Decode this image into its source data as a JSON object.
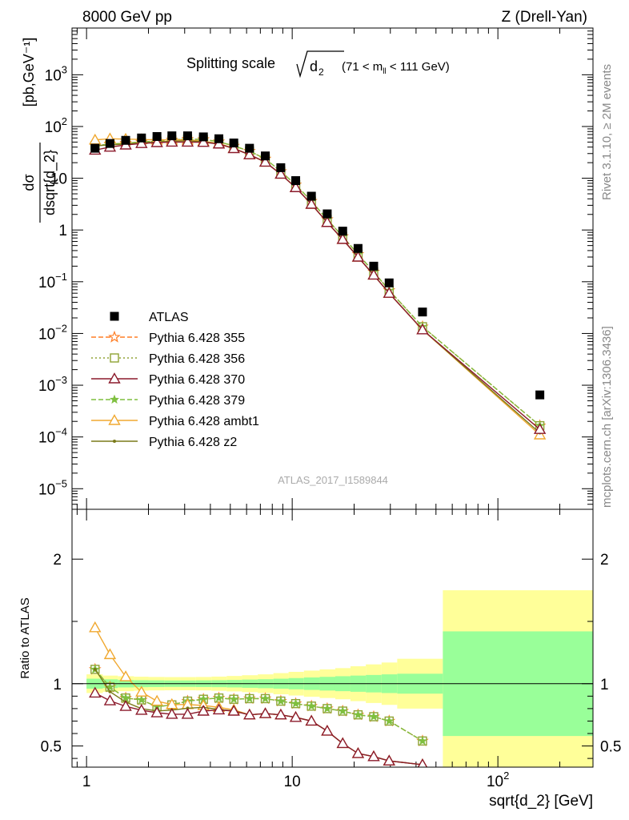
{
  "header": {
    "left": "8000 GeV pp",
    "right": "Z (Drell-Yan)"
  },
  "side_labels": {
    "rivet": "Rivet 3.1.10, ≥ 2M events",
    "mcplots": "mcplots.cern.ch [arXiv:1306.3436]"
  },
  "chart_data": [
    {
      "type": "scatter",
      "panel": "main",
      "title": "Splitting scale",
      "title_symbol": "d",
      "title_symbol_sub": "2",
      "subtitle_prefix": "(71 < m",
      "subtitle_sub": "ll",
      "subtitle_suffix": " < 111 GeV)",
      "ylabel_num": "dσ",
      "ylabel_den": "dsqrt{d_2}",
      "ylabel_unit": "[pb,GeV⁻¹]",
      "xscale": "log",
      "yscale": "log",
      "xlim": [
        0.85,
        290
      ],
      "ylim": [
        4e-06,
        8000
      ],
      "y_ticks": [
        {
          "v": 1e-05,
          "b": "10",
          "e": "−5"
        },
        {
          "v": 0.0001,
          "b": "10",
          "e": "−4"
        },
        {
          "v": 0.001,
          "b": "10",
          "e": "−3"
        },
        {
          "v": 0.01,
          "b": "10",
          "e": "−2"
        },
        {
          "v": 0.1,
          "b": "10",
          "e": "−1"
        },
        {
          "v": 1,
          "b": "1",
          "e": ""
        },
        {
          "v": 10,
          "b": "10",
          "e": ""
        },
        {
          "v": 100,
          "b": "10",
          "e": "2"
        },
        {
          "v": 1000,
          "b": "10",
          "e": "3"
        }
      ],
      "watermark": "ATLAS_2017_I1589844",
      "legend_position": "left",
      "series": [
        {
          "name": "ATLAS",
          "color": "#000000",
          "marker": "square",
          "x": [
            1.1,
            1.3,
            1.55,
            1.85,
            2.2,
            2.6,
            3.1,
            3.7,
            4.4,
            5.2,
            6.2,
            7.4,
            8.8,
            10.4,
            12.4,
            14.8,
            17.6,
            20.9,
            24.9,
            29.6,
            43,
            160
          ],
          "y": [
            38,
            47,
            54,
            60,
            64,
            66,
            66,
            63,
            58,
            48,
            38,
            27,
            16,
            9,
            4.5,
            2.05,
            0.95,
            0.44,
            0.2,
            0.095,
            0.026,
            0.00065
          ]
        },
        {
          "name": "Pythia 6.428 355",
          "color": "#ff7f27",
          "marker": "star-open",
          "dash": "6,3",
          "x": [
            1.1,
            1.3,
            1.55,
            1.85,
            2.2,
            2.6,
            3.1,
            3.7,
            4.4,
            5.2,
            6.2,
            7.4,
            8.8,
            10.4,
            12.4,
            14.8,
            17.6,
            20.9,
            24.9,
            29.6,
            43,
            160
          ],
          "y": [
            42.4,
            45.7,
            47.8,
            50,
            52,
            55,
            57,
            56,
            51,
            42,
            33.5,
            23.7,
            13.6,
            7.5,
            3.6,
            1.6,
            0.75,
            0.34,
            0.155,
            0.068,
            0.0135,
            0.000165
          ]
        },
        {
          "name": "Pythia 6.428 356",
          "color": "#8fa234",
          "marker": "square-open",
          "dash": "2,3",
          "x": [
            1.1,
            1.3,
            1.55,
            1.85,
            2.2,
            2.6,
            3.1,
            3.7,
            4.4,
            5.2,
            6.2,
            7.4,
            8.8,
            10.4,
            12.4,
            14.8,
            17.6,
            20.9,
            24.9,
            29.6,
            43,
            160
          ],
          "y": [
            42.4,
            45.7,
            47.8,
            50,
            52,
            55,
            57,
            56,
            51,
            42,
            33.5,
            23.7,
            13.6,
            7.5,
            3.6,
            1.6,
            0.75,
            0.34,
            0.155,
            0.068,
            0.0135,
            0.000165
          ]
        },
        {
          "name": "Pythia 6.428 370",
          "color": "#8b1a2b",
          "marker": "triangle-open",
          "dash": "",
          "x": [
            1.1,
            1.3,
            1.55,
            1.85,
            2.2,
            2.6,
            3.1,
            3.7,
            4.4,
            5.2,
            6.2,
            7.4,
            8.8,
            10.4,
            12.4,
            14.8,
            17.6,
            20.9,
            24.9,
            29.6,
            43,
            160
          ],
          "y": [
            35,
            40,
            44,
            47,
            49,
            50,
            50,
            49.5,
            46,
            37.5,
            28.5,
            20.5,
            12,
            6.6,
            3.15,
            1.4,
            0.66,
            0.3,
            0.135,
            0.06,
            0.0118,
            0.00014
          ]
        },
        {
          "name": "Pythia 6.428 379",
          "color": "#7fbf3f",
          "marker": "star",
          "dash": "6,3",
          "x": [
            1.1,
            1.3,
            1.55,
            1.85,
            2.2,
            2.6,
            3.1,
            3.7,
            4.4,
            5.2,
            6.2,
            7.4,
            8.8,
            10.4,
            12.4,
            14.8,
            17.6,
            20.9,
            24.9,
            29.6,
            43,
            160
          ],
          "y": [
            42.4,
            45.7,
            47.8,
            50,
            52,
            55,
            57,
            56,
            51,
            42,
            33.5,
            23.7,
            13.6,
            7.5,
            3.6,
            1.6,
            0.75,
            0.34,
            0.155,
            0.068,
            0.0135,
            0.000165
          ]
        },
        {
          "name": "Pythia 6.428 ambt1",
          "color": "#f0a830",
          "marker": "triangle-open",
          "dash": "",
          "x": [
            1.1,
            1.3,
            1.55,
            1.85,
            2.2,
            2.6,
            3.1,
            3.7,
            4.4,
            5.2,
            6.2,
            7.4,
            8.8,
            10.4,
            12.4,
            14.8,
            17.6,
            20.9,
            24.9,
            29.6,
            43,
            160
          ],
          "y": [
            55,
            58,
            57,
            56,
            55,
            55,
            55,
            52,
            47,
            38,
            28.5,
            20.5,
            12,
            6.6,
            3.15,
            1.4,
            0.66,
            0.3,
            0.135,
            0.06,
            0.0118,
            0.00011
          ]
        },
        {
          "name": "Pythia 6.428 z2",
          "color": "#7a7a1a",
          "marker": "dot",
          "dash": "",
          "x": [
            1.1,
            1.3,
            1.55,
            1.85,
            2.2,
            2.6,
            3.1,
            3.7,
            4.4,
            5.2,
            6.2,
            7.4,
            8.8,
            10.4,
            12.4,
            14.8,
            17.6,
            20.9,
            24.9,
            29.6,
            43,
            160
          ],
          "y": [
            42.4,
            44,
            46,
            48,
            50,
            52,
            53,
            51,
            46,
            37.5,
            28.5,
            20.5,
            12,
            6.6,
            3.15,
            1.4,
            0.66,
            0.3,
            0.135,
            0.06,
            0.0118,
            0.00012
          ]
        }
      ]
    },
    {
      "type": "line",
      "panel": "ratio",
      "ylabel": "Ratio to ATLAS",
      "xlabel": "sqrt{d_2} [GeV]",
      "xscale": "log",
      "xlim": [
        0.85,
        290
      ],
      "ylim": [
        0.33,
        2.4
      ],
      "y_ticks": [
        0.5,
        1,
        2
      ],
      "x_ticks": [
        {
          "v": 1,
          "b": "1",
          "e": ""
        },
        {
          "v": 10,
          "b": "10",
          "e": ""
        },
        {
          "v": 100,
          "b": "10",
          "e": "2"
        }
      ],
      "reference": 1,
      "bands": {
        "edges": [
          1,
          1.2,
          1.42,
          1.7,
          2,
          2.4,
          2.85,
          3.4,
          4.05,
          4.8,
          5.7,
          6.8,
          8.1,
          9.6,
          11.4,
          13.6,
          16.2,
          19.2,
          22.8,
          27.2,
          32.4,
          54,
          290
        ],
        "green": [
          0.04,
          0.035,
          0.03,
          0.028,
          0.027,
          0.026,
          0.026,
          0.027,
          0.028,
          0.03,
          0.033,
          0.036,
          0.04,
          0.045,
          0.05,
          0.055,
          0.06,
          0.065,
          0.07,
          0.075,
          0.08,
          0.42
        ],
        "yellow": [
          0.075,
          0.065,
          0.06,
          0.056,
          0.054,
          0.053,
          0.053,
          0.054,
          0.057,
          0.062,
          0.068,
          0.075,
          0.085,
          0.095,
          0.105,
          0.115,
          0.125,
          0.14,
          0.155,
          0.17,
          0.2,
          0.75
        ]
      },
      "band_colors": {
        "green": "#99ff99",
        "yellow": "#ffff99"
      },
      "series": [
        {
          "name": "Pythia 6.428 355",
          "color": "#ff7f27",
          "marker": "star-open",
          "dash": "6,3",
          "x": [
            1.1,
            1.3,
            1.55,
            1.85,
            2.2,
            2.6,
            3.1,
            3.7,
            4.4,
            5.2,
            6.2,
            7.4,
            8.8,
            10.4,
            12.4,
            14.8,
            17.6,
            20.9,
            24.9,
            29.6,
            43
          ],
          "y": [
            1.115,
            0.973,
            0.885,
            0.87,
            0.815,
            0.83,
            0.86,
            0.875,
            0.885,
            0.875,
            0.88,
            0.88,
            0.86,
            0.84,
            0.82,
            0.8,
            0.78,
            0.75,
            0.735,
            0.7,
            0.54
          ]
        },
        {
          "name": "Pythia 6.428 356",
          "color": "#8fa234",
          "marker": "square-open",
          "dash": "2,3",
          "x": [
            1.1,
            1.3,
            1.55,
            1.85,
            2.2,
            2.6,
            3.1,
            3.7,
            4.4,
            5.2,
            6.2,
            7.4,
            8.8,
            10.4,
            12.4,
            14.8,
            17.6,
            20.9,
            24.9,
            29.6,
            43
          ],
          "y": [
            1.115,
            0.973,
            0.885,
            0.87,
            0.815,
            0.83,
            0.86,
            0.875,
            0.885,
            0.875,
            0.88,
            0.88,
            0.86,
            0.84,
            0.82,
            0.8,
            0.78,
            0.75,
            0.735,
            0.7,
            0.54
          ]
        },
        {
          "name": "Pythia 6.428 370",
          "color": "#8b1a2b",
          "marker": "triangle-open",
          "dash": "",
          "x": [
            1.1,
            1.3,
            1.55,
            1.85,
            2.2,
            2.6,
            3.1,
            3.7,
            4.4,
            5.2,
            6.2,
            7.4,
            8.8,
            10.4,
            12.4,
            14.8,
            17.6,
            20.9,
            24.9,
            29.6,
            43
          ],
          "y": [
            0.925,
            0.863,
            0.818,
            0.787,
            0.767,
            0.755,
            0.755,
            0.78,
            0.79,
            0.78,
            0.75,
            0.76,
            0.75,
            0.73,
            0.7,
            0.62,
            0.52,
            0.44,
            0.415,
            0.38,
            0.35
          ]
        },
        {
          "name": "Pythia 6.428 379",
          "color": "#7fbf3f",
          "marker": "star",
          "dash": "6,3",
          "x": [
            1.1,
            1.3,
            1.55,
            1.85,
            2.2,
            2.6,
            3.1,
            3.7,
            4.4,
            5.2,
            6.2,
            7.4,
            8.8,
            10.4,
            12.4,
            14.8,
            17.6,
            20.9,
            24.9,
            29.6,
            43
          ],
          "y": [
            1.115,
            0.973,
            0.885,
            0.87,
            0.815,
            0.83,
            0.86,
            0.875,
            0.885,
            0.875,
            0.88,
            0.88,
            0.86,
            0.84,
            0.82,
            0.8,
            0.78,
            0.75,
            0.735,
            0.7,
            0.54
          ]
        },
        {
          "name": "Pythia 6.428 ambt1",
          "color": "#f0a830",
          "marker": "triangle-open",
          "dash": "",
          "x": [
            1.1,
            1.3,
            1.55,
            1.85,
            2.2,
            2.6,
            3.1,
            3.7,
            4.4,
            5.2,
            6.2,
            7.4,
            8.8,
            10.4,
            12.4,
            14.8,
            17.6,
            20.9,
            24.9,
            29.6,
            43
          ],
          "y": [
            1.45,
            1.234,
            1.056,
            0.933,
            0.86,
            0.833,
            0.833,
            0.825,
            0.81,
            0.79,
            0.75,
            0.76,
            0.75,
            0.73,
            0.7,
            0.62,
            0.52,
            0.44,
            0.415,
            0.38,
            0.35
          ]
        },
        {
          "name": "Pythia 6.428 z2",
          "color": "#7a7a1a",
          "marker": "dot",
          "dash": "",
          "x": [
            1.1,
            1.3,
            1.55,
            1.85,
            2.2,
            2.6,
            3.1,
            3.7,
            4.4,
            5.2,
            6.2,
            7.4,
            8.8,
            10.4,
            12.4,
            14.8,
            17.6,
            20.9,
            24.9,
            29.6,
            43
          ],
          "y": [
            1.115,
            0.936,
            0.852,
            0.8,
            0.781,
            0.788,
            0.803,
            0.81,
            0.793,
            0.781,
            0.75,
            0.76,
            0.75,
            0.73,
            0.7,
            0.62,
            0.52,
            0.44,
            0.415,
            0.38,
            0.35
          ]
        }
      ]
    }
  ]
}
